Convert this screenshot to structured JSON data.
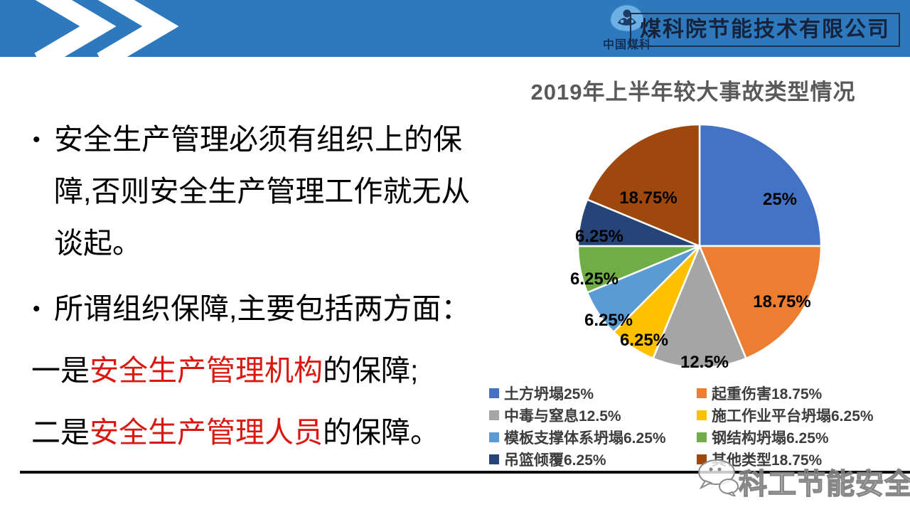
{
  "header": {
    "company_name": "煤科院节能技术有限公司",
    "logo_text": "中国煤科"
  },
  "left_text": {
    "highlight_color": "#da1710",
    "para1": {
      "bullet": "•",
      "lines": [
        "安全生产管理必须有组织上的保",
        "障,否则安全生产管理工作就无从",
        "谈起。"
      ]
    },
    "para2": {
      "bullet": "•",
      "text": "所谓组织保障,主要包括两方面："
    },
    "para3": {
      "prefix": "一是",
      "highlight": "安全生产管理机构",
      "suffix": "的保障;"
    },
    "para4": {
      "prefix": "二是",
      "highlight": "安全生产管理人员",
      "suffix": "的保障。"
    }
  },
  "chart_data": {
    "type": "pie",
    "title": "2019年上半年较大事故类型情况",
    "start_angle_deg": 0,
    "direction": "clockwise",
    "legend_position": "bottom",
    "legend_columns": 2,
    "slices": [
      {
        "name": "土方坍塌",
        "value": 25,
        "label": "25%",
        "color": "#4472C4"
      },
      {
        "name": "起重伤害",
        "value": 18.75,
        "label": "18.75%",
        "color": "#ED7D31"
      },
      {
        "name": "中毒与窒息",
        "value": 12.5,
        "label": "12.5%",
        "color": "#A5A5A5"
      },
      {
        "name": "施工作业平台坍塌",
        "value": 6.25,
        "label": "6.25%",
        "color": "#FFC000"
      },
      {
        "name": "模板支撑体系坍塌",
        "value": 6.25,
        "label": "6.25%",
        "color": "#5B9BD5"
      },
      {
        "name": "钢结构坍塌",
        "value": 6.25,
        "label": "6.25%",
        "color": "#70AD47"
      },
      {
        "name": "吊篮倾覆",
        "value": 6.25,
        "label": "6.25%",
        "color": "#264478"
      },
      {
        "name": "其他类型",
        "value": 18.75,
        "label": "18.75%",
        "color": "#9E480E"
      }
    ]
  },
  "footer": {
    "watermark_text": "科工节能安全"
  }
}
